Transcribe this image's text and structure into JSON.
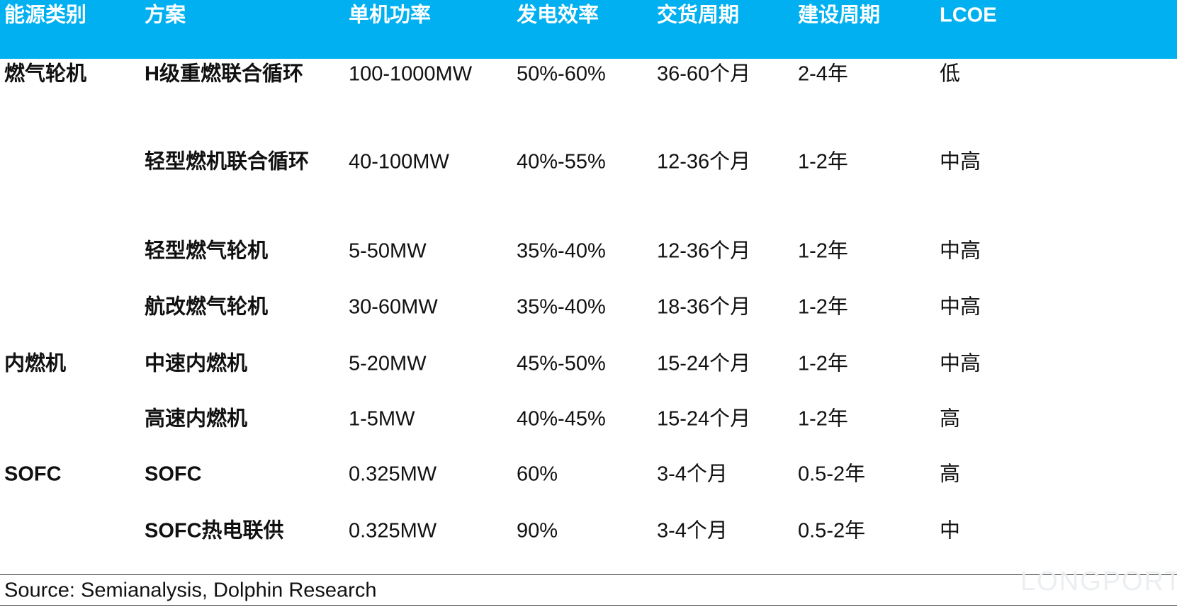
{
  "table": {
    "header": [
      "能源类别",
      "方案",
      "单机功率",
      "发电效率",
      "交货周期",
      "建设周期",
      "LCOE"
    ],
    "groups": [
      {
        "category": "燃气轮机",
        "rows": [
          [
            "H级重燃联合循环",
            "100-1000MW",
            "50%-60%",
            "36-60个月",
            "2-4年",
            "低"
          ],
          [
            "轻型燃机联合循环",
            "40-100MW",
            "40%-55%",
            "12-36个月",
            "1-2年",
            "中高"
          ],
          [
            "轻型燃气轮机",
            "5-50MW",
            "35%-40%",
            "12-36个月",
            "1-2年",
            "中高"
          ],
          [
            "航改燃气轮机",
            "30-60MW",
            "35%-40%",
            "18-36个月",
            "1-2年",
            "中高"
          ]
        ]
      },
      {
        "category": "内燃机",
        "rows": [
          [
            "中速内燃机",
            "5-20MW",
            "45%-50%",
            "15-24个月",
            "1-2年",
            "中高"
          ],
          [
            "高速内燃机",
            "1-5MW",
            "40%-45%",
            "15-24个月",
            "1-2年",
            "高"
          ]
        ]
      },
      {
        "category": "SOFC",
        "rows": [
          [
            "SOFC",
            "0.325MW",
            "60%",
            "3-4个月",
            "0.5-2年",
            "高"
          ],
          [
            "SOFC热电联供",
            "0.325MW",
            "90%",
            "3-4个月",
            "0.5-2年",
            "中"
          ]
        ]
      }
    ],
    "source": "Source: Semianalysis, Dolphin Research",
    "watermark": "LONGPORT"
  }
}
